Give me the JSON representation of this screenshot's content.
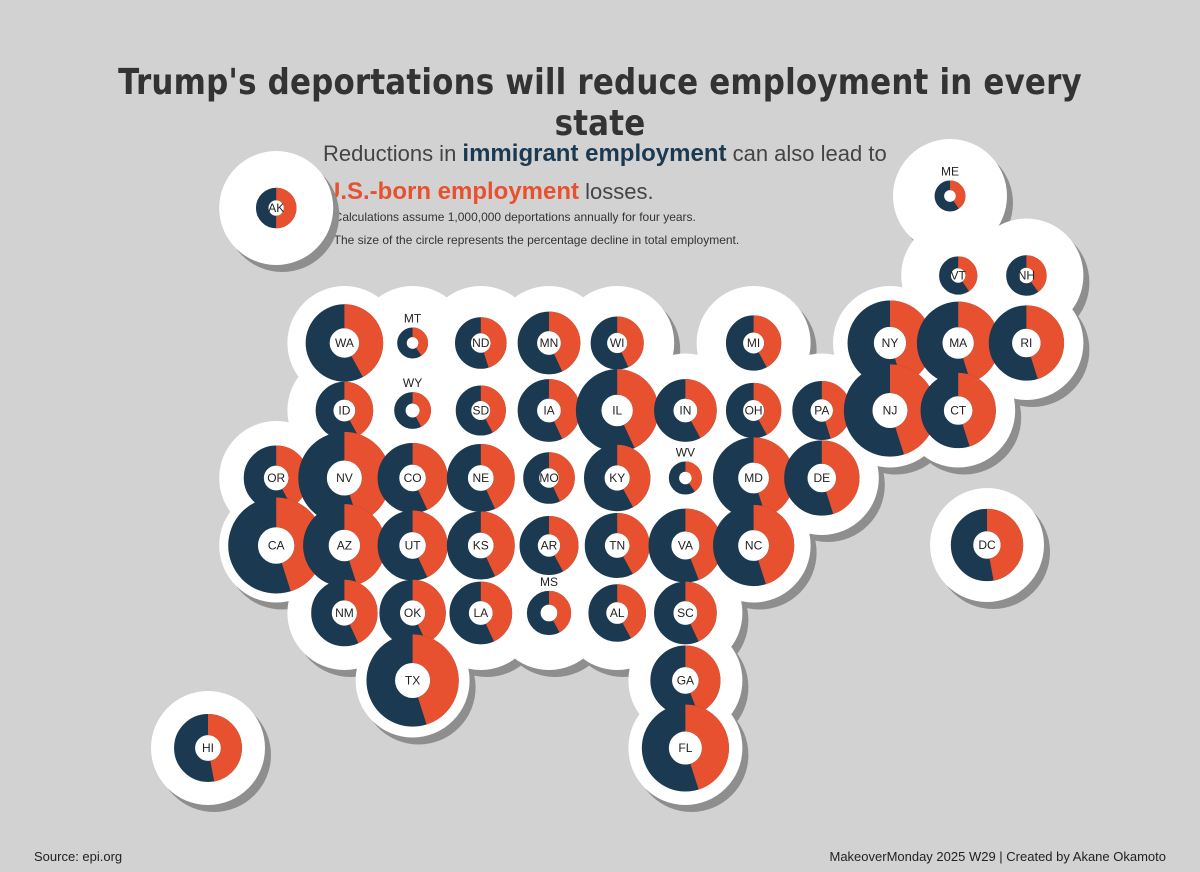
{
  "title": "Trump's deportations will reduce employment in every state",
  "subtitle": {
    "part1": "Reductions in ",
    "immigrant": "immigrant employment",
    "part2": " can also lead to",
    "usborn": "U.S.-born employment",
    "part3": " losses."
  },
  "notes": [
    "*Calculations assume 1,000,000 deportations annually for four years.",
    "*The size of the circle represents the percentage decline in total employment."
  ],
  "source": "Source: epi.org",
  "credit": "MakeoverMonday 2025 W29 | Created by Akane Okamoto",
  "colors": {
    "immigrant": "#1b3a52",
    "us_born": "#e8512f",
    "background": "#d2d2d2",
    "tile": "#ffffff",
    "shadow": "#8e8e8e"
  },
  "chart_data": {
    "type": "tile-map-donut",
    "series": [
      {
        "name": "immigrant employment"
      },
      {
        "name": "U.S.-born employment"
      }
    ],
    "states": [
      {
        "state": "AK",
        "col": 1,
        "row": 0,
        "size": 0.25,
        "us_born_share": 0.5,
        "label_outside": false
      },
      {
        "state": "ME",
        "col": 12,
        "row": 0,
        "size": 0.12,
        "us_born_share": 0.4,
        "label_outside": true
      },
      {
        "state": "VT",
        "col": 11,
        "row": 1,
        "size": 0.22,
        "us_born_share": 0.4,
        "label_outside": false
      },
      {
        "state": "NH",
        "col": 12,
        "row": 1,
        "size": 0.25,
        "us_born_share": 0.4,
        "label_outside": false
      },
      {
        "state": "WA",
        "col": 2,
        "row": 2,
        "size": 0.75,
        "us_born_share": 0.42,
        "label_outside": false
      },
      {
        "state": "MT",
        "col": 3,
        "row": 2,
        "size": 0.12,
        "us_born_share": 0.4,
        "label_outside": true
      },
      {
        "state": "ND",
        "col": 4,
        "row": 2,
        "size": 0.4,
        "us_born_share": 0.45,
        "label_outside": false
      },
      {
        "state": "MN",
        "col": 5,
        "row": 2,
        "size": 0.55,
        "us_born_share": 0.43,
        "label_outside": false
      },
      {
        "state": "WI",
        "col": 6,
        "row": 2,
        "size": 0.42,
        "us_born_share": 0.43,
        "label_outside": false
      },
      {
        "state": "MI",
        "col": 8,
        "row": 2,
        "size": 0.45,
        "us_born_share": 0.42,
        "label_outside": false
      },
      {
        "state": "NY",
        "col": 10,
        "row": 2,
        "size": 0.85,
        "us_born_share": 0.45,
        "label_outside": false
      },
      {
        "state": "MA",
        "col": 11,
        "row": 2,
        "size": 0.82,
        "us_born_share": 0.45,
        "label_outside": false
      },
      {
        "state": "RI",
        "col": 12,
        "row": 2,
        "size": 0.72,
        "us_born_share": 0.45,
        "label_outside": false
      },
      {
        "state": "ID",
        "col": 2,
        "row": 3,
        "size": 0.48,
        "us_born_share": 0.42,
        "label_outside": false
      },
      {
        "state": "WY",
        "col": 3,
        "row": 3,
        "size": 0.2,
        "us_born_share": 0.42,
        "label_outside": true
      },
      {
        "state": "SD",
        "col": 4,
        "row": 3,
        "size": 0.38,
        "us_born_share": 0.42,
        "label_outside": false
      },
      {
        "state": "IA",
        "col": 5,
        "row": 3,
        "size": 0.55,
        "us_born_share": 0.43,
        "label_outside": false
      },
      {
        "state": "IL",
        "col": 6,
        "row": 3,
        "size": 0.82,
        "us_born_share": 0.43,
        "label_outside": false
      },
      {
        "state": "IN",
        "col": 7,
        "row": 3,
        "size": 0.55,
        "us_born_share": 0.42,
        "label_outside": false
      },
      {
        "state": "OH",
        "col": 8,
        "row": 3,
        "size": 0.45,
        "us_born_share": 0.42,
        "label_outside": false
      },
      {
        "state": "PA",
        "col": 9,
        "row": 3,
        "size": 0.5,
        "us_born_share": 0.45,
        "label_outside": false
      },
      {
        "state": "NJ",
        "col": 10,
        "row": 3,
        "size": 0.95,
        "us_born_share": 0.45,
        "label_outside": false
      },
      {
        "state": "CT",
        "col": 11,
        "row": 3,
        "size": 0.72,
        "us_born_share": 0.45,
        "label_outside": false
      },
      {
        "state": "OR",
        "col": 1,
        "row": 4,
        "size": 0.58,
        "us_born_share": 0.42,
        "label_outside": false
      },
      {
        "state": "NV",
        "col": 2,
        "row": 4,
        "size": 0.95,
        "us_born_share": 0.45,
        "label_outside": false
      },
      {
        "state": "CO",
        "col": 3,
        "row": 4,
        "size": 0.65,
        "us_born_share": 0.43,
        "label_outside": false
      },
      {
        "state": "NE",
        "col": 4,
        "row": 4,
        "size": 0.62,
        "us_born_share": 0.43,
        "label_outside": false
      },
      {
        "state": "MO",
        "col": 5,
        "row": 4,
        "size": 0.4,
        "us_born_share": 0.43,
        "label_outside": false
      },
      {
        "state": "KY",
        "col": 6,
        "row": 4,
        "size": 0.6,
        "us_born_share": 0.42,
        "label_outside": false
      },
      {
        "state": "WV",
        "col": 7,
        "row": 4,
        "size": 0.15,
        "us_born_share": 0.4,
        "label_outside": true
      },
      {
        "state": "MD",
        "col": 8,
        "row": 4,
        "size": 0.8,
        "us_born_share": 0.45,
        "label_outside": false
      },
      {
        "state": "DE",
        "col": 9,
        "row": 4,
        "size": 0.72,
        "us_born_share": 0.45,
        "label_outside": false
      },
      {
        "state": "CA",
        "col": 1,
        "row": 5,
        "size": 1.0,
        "us_born_share": 0.45,
        "label_outside": false
      },
      {
        "state": "AZ",
        "col": 2,
        "row": 5,
        "size": 0.82,
        "us_born_share": 0.45,
        "label_outside": false
      },
      {
        "state": "UT",
        "col": 3,
        "row": 5,
        "size": 0.65,
        "us_born_share": 0.43,
        "label_outside": false
      },
      {
        "state": "KS",
        "col": 4,
        "row": 5,
        "size": 0.62,
        "us_born_share": 0.43,
        "label_outside": false
      },
      {
        "state": "AR",
        "col": 5,
        "row": 5,
        "size": 0.5,
        "us_born_share": 0.42,
        "label_outside": false
      },
      {
        "state": "TN",
        "col": 6,
        "row": 5,
        "size": 0.58,
        "us_born_share": 0.42,
        "label_outside": false
      },
      {
        "state": "VA",
        "col": 7,
        "row": 5,
        "size": 0.7,
        "us_born_share": 0.44,
        "label_outside": false
      },
      {
        "state": "NC",
        "col": 8,
        "row": 5,
        "size": 0.8,
        "us_born_share": 0.45,
        "label_outside": false
      },
      {
        "state": "DC",
        "col": 11,
        "row": 5,
        "size": 0.68,
        "us_born_share": 0.47,
        "label_outside": false
      },
      {
        "state": "NM",
        "col": 2,
        "row": 6,
        "size": 0.6,
        "us_born_share": 0.43,
        "label_outside": false
      },
      {
        "state": "OK",
        "col": 3,
        "row": 6,
        "size": 0.6,
        "us_born_share": 0.43,
        "label_outside": false
      },
      {
        "state": "LA",
        "col": 4,
        "row": 6,
        "size": 0.55,
        "us_born_share": 0.43,
        "label_outside": false
      },
      {
        "state": "MS",
        "col": 5,
        "row": 6,
        "size": 0.3,
        "us_born_share": 0.42,
        "label_outside": true
      },
      {
        "state": "AL",
        "col": 6,
        "row": 6,
        "size": 0.48,
        "us_born_share": 0.42,
        "label_outside": false
      },
      {
        "state": "SC",
        "col": 7,
        "row": 6,
        "size": 0.55,
        "us_born_share": 0.43,
        "label_outside": false
      },
      {
        "state": "TX",
        "col": 3,
        "row": 7,
        "size": 0.95,
        "us_born_share": 0.45,
        "label_outside": false
      },
      {
        "state": "GA",
        "col": 7,
        "row": 7,
        "size": 0.65,
        "us_born_share": 0.44,
        "label_outside": false
      },
      {
        "state": "HI",
        "col": 1,
        "row": 8,
        "size": 0.62,
        "us_born_share": 0.47,
        "label_outside": false
      },
      {
        "state": "FL",
        "col": 7,
        "row": 8,
        "size": 0.88,
        "us_born_share": 0.45,
        "label_outside": false
      }
    ]
  }
}
